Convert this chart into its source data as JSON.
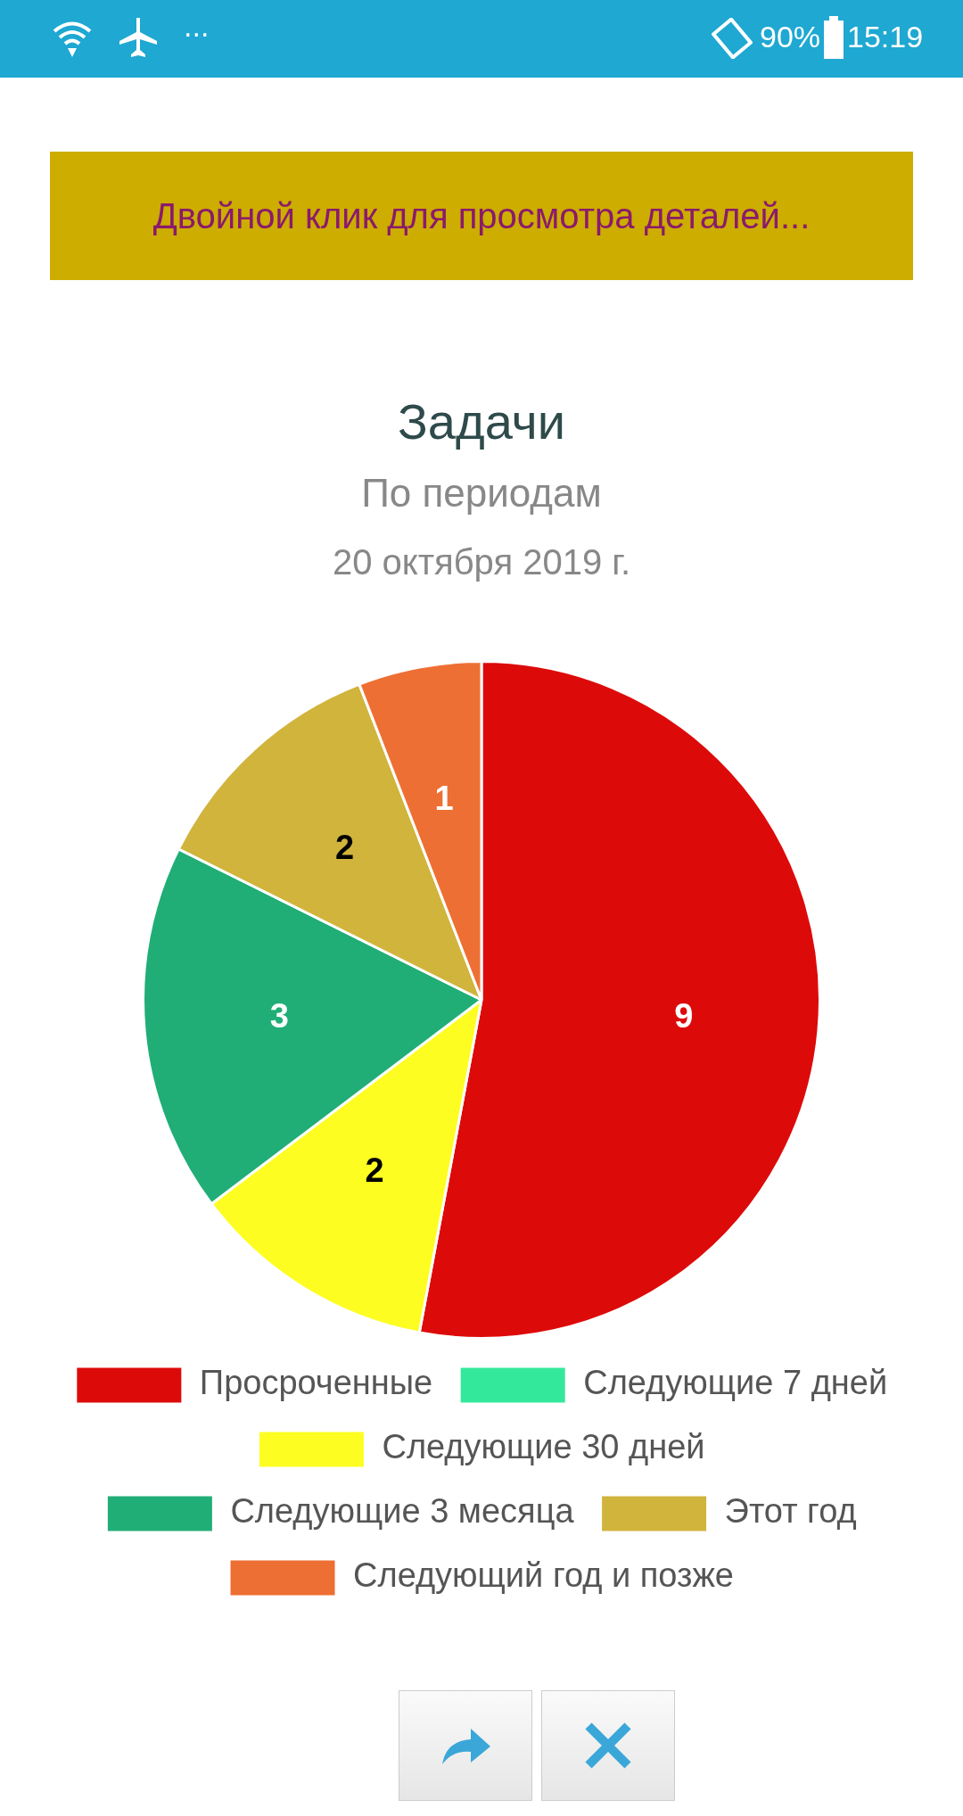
{
  "chart_data": {
    "type": "pie",
    "title": "Задачи",
    "subtitle": "По периодам",
    "annotations": [
      "20 октября 2019 г.",
      "Двойной клик для просмотра деталей...",
      "···",
      "90%",
      "15:19"
    ],
    "categories": [
      "Просроченные",
      "Следующие 7 дней",
      "Следующие 30 дней",
      "Следующие 3 месяца",
      "Этот год",
      "Следующий год и позже"
    ],
    "values": [
      9,
      0,
      2,
      3,
      2,
      1
    ],
    "colors": [
      "#dd0a0a",
      "#33e89a",
      "#fdfd22",
      "#20ae76",
      "#d0b43c",
      "#ee6f33"
    ],
    "value_labels": [
      "9",
      null,
      "2",
      "3",
      "2",
      "1"
    ],
    "legend": "bottom"
  }
}
